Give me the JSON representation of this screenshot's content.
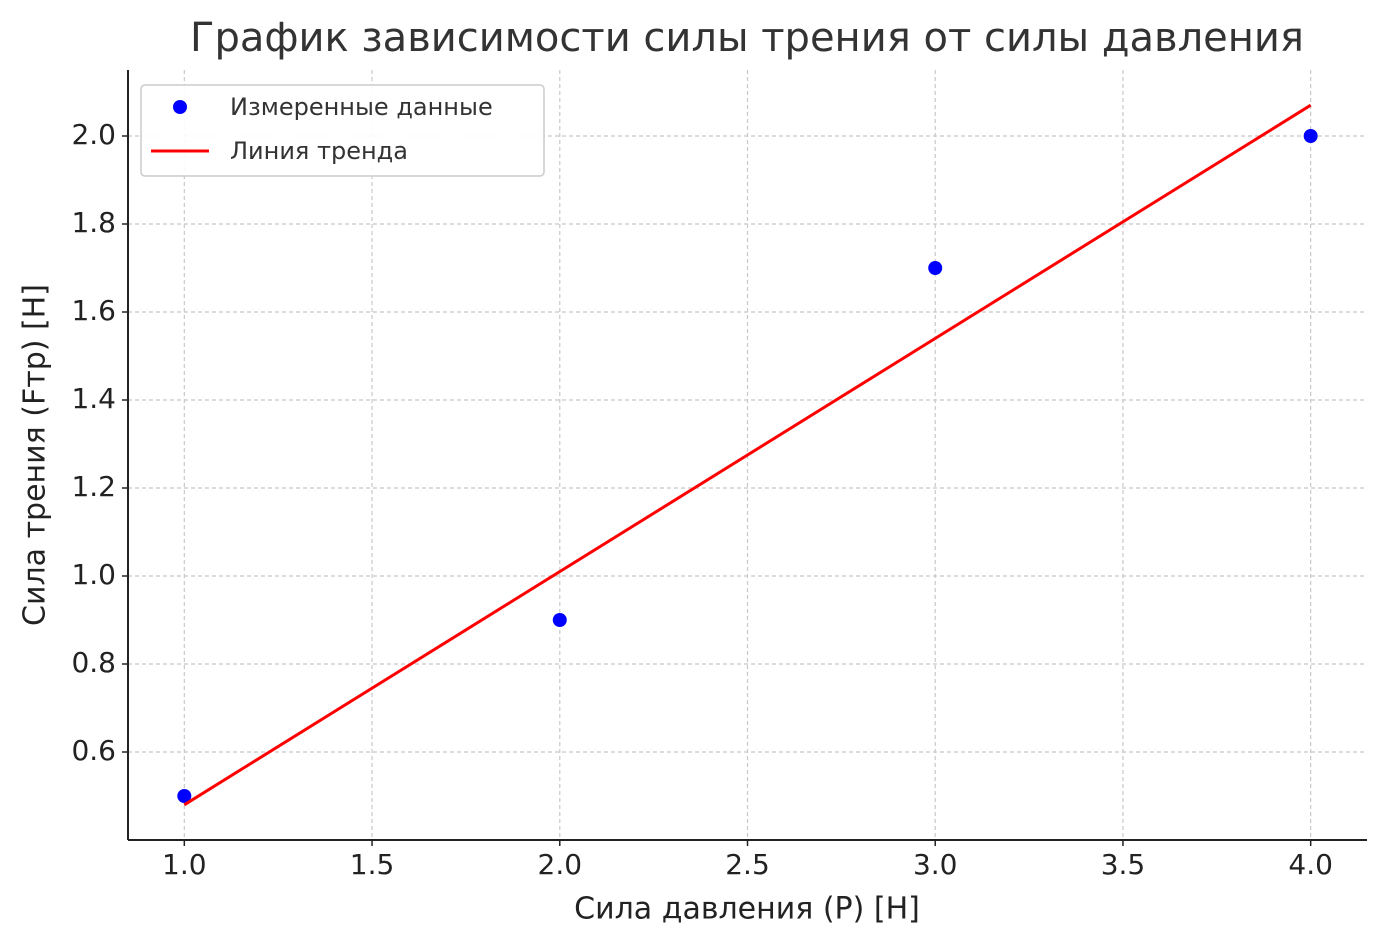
{
  "chart_data": {
    "type": "scatter",
    "title": "График зависимости силы трения от силы давления",
    "x_label": "Сила давления (P) [Н]",
    "y_label": "Сила трения (Fтр) [Н]",
    "series": [
      {
        "name": "Измеренные данные",
        "mode": "markers",
        "color": "#0000ff",
        "x": [
          1.0,
          2.0,
          3.0,
          4.0
        ],
        "values": [
          0.5,
          0.9,
          1.7,
          2.0
        ]
      },
      {
        "name": "Линия тренда",
        "mode": "line",
        "color": "#ff0000",
        "x": [
          1.0,
          4.0
        ],
        "values": [
          0.48,
          2.07
        ]
      }
    ],
    "xlim": [
      0.85,
      4.15
    ],
    "xticks": [
      {
        "value": 1,
        "label": "1.0"
      },
      1.5,
      {
        "value": 2,
        "label": "2.0"
      },
      2.5,
      {
        "value": 3,
        "label": "3.0"
      },
      3.5,
      {
        "value": 4,
        "label": "4.0"
      }
    ],
    "ylim": [
      0.4,
      2.15
    ],
    "yticks": [
      0.6,
      0.8,
      {
        "value": 1,
        "label": "1.0"
      },
      1.2,
      1.4,
      1.6,
      1.8,
      {
        "value": 2,
        "label": "2.0"
      }
    ],
    "grid": true,
    "legend": "upper left"
  }
}
